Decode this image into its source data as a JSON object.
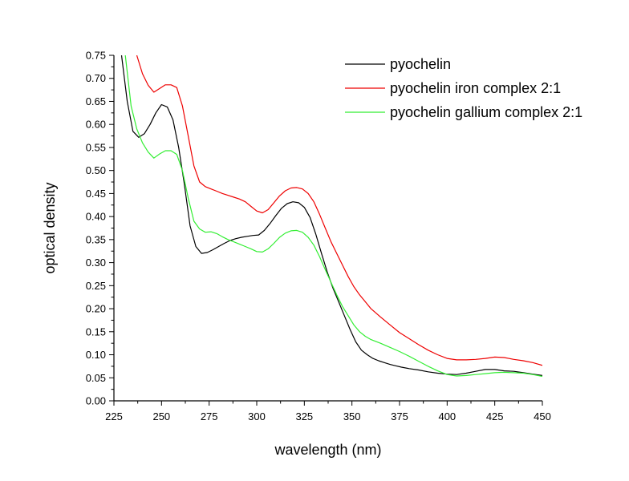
{
  "chart_data": {
    "type": "line",
    "title": "",
    "xlabel": "wavelength (nm)",
    "ylabel": "optical density",
    "xlim": [
      225,
      450
    ],
    "ylim": [
      0.0,
      0.75
    ],
    "x_ticks": [
      "225",
      "250",
      "275",
      "300",
      "325",
      "350",
      "375",
      "400",
      "425",
      "450"
    ],
    "y_ticks": [
      "0.00",
      "0.05",
      "0.10",
      "0.15",
      "0.20",
      "0.25",
      "0.30",
      "0.35",
      "0.40",
      "0.45",
      "0.50",
      "0.55",
      "0.60",
      "0.65",
      "0.70",
      "0.75"
    ],
    "grid": false,
    "legend_position": "top-right",
    "series": [
      {
        "name": "pyochelin",
        "color": "#000000",
        "x": [
          229,
          232,
          235,
          238,
          241,
          244,
          247,
          250,
          253,
          256,
          259,
          262,
          265,
          268,
          271,
          274,
          277,
          280,
          283,
          286,
          289,
          292,
          295,
          298,
          301,
          304,
          307,
          310,
          313,
          316,
          319,
          322,
          325,
          328,
          331,
          334,
          337,
          340,
          343,
          346,
          349,
          352,
          355,
          358,
          361,
          364,
          367,
          370,
          373,
          376,
          380,
          385,
          390,
          395,
          400,
          405,
          410,
          415,
          420,
          425,
          430,
          435,
          440,
          445,
          450
        ],
        "y": [
          0.75,
          0.65,
          0.585,
          0.572,
          0.58,
          0.6,
          0.625,
          0.643,
          0.638,
          0.61,
          0.55,
          0.47,
          0.38,
          0.335,
          0.32,
          0.322,
          0.328,
          0.335,
          0.342,
          0.348,
          0.352,
          0.355,
          0.357,
          0.359,
          0.36,
          0.37,
          0.385,
          0.402,
          0.418,
          0.428,
          0.432,
          0.43,
          0.42,
          0.398,
          0.362,
          0.32,
          0.28,
          0.245,
          0.215,
          0.185,
          0.155,
          0.128,
          0.11,
          0.1,
          0.092,
          0.087,
          0.083,
          0.079,
          0.076,
          0.073,
          0.07,
          0.067,
          0.063,
          0.06,
          0.058,
          0.057,
          0.06,
          0.064,
          0.068,
          0.068,
          0.065,
          0.064,
          0.061,
          0.058,
          0.055
        ]
      },
      {
        "name": "pyochelin iron complex 2:1",
        "color": "#ee0000",
        "x": [
          237,
          240,
          243,
          246,
          249,
          252,
          255,
          258,
          261,
          264,
          267,
          270,
          273,
          276,
          279,
          282,
          285,
          288,
          291,
          294,
          297,
          300,
          303,
          306,
          309,
          312,
          315,
          318,
          321,
          324,
          327,
          330,
          333,
          336,
          339,
          342,
          345,
          348,
          351,
          354,
          357,
          360,
          365,
          370,
          375,
          380,
          385,
          390,
          395,
          400,
          405,
          410,
          415,
          420,
          425,
          430,
          435,
          440,
          445,
          450
        ],
        "y": [
          0.75,
          0.71,
          0.685,
          0.67,
          0.678,
          0.686,
          0.686,
          0.68,
          0.64,
          0.575,
          0.51,
          0.475,
          0.465,
          0.46,
          0.455,
          0.45,
          0.446,
          0.442,
          0.438,
          0.432,
          0.422,
          0.412,
          0.408,
          0.415,
          0.43,
          0.445,
          0.456,
          0.462,
          0.463,
          0.46,
          0.45,
          0.432,
          0.405,
          0.375,
          0.345,
          0.32,
          0.295,
          0.27,
          0.248,
          0.23,
          0.215,
          0.2,
          0.182,
          0.165,
          0.148,
          0.135,
          0.122,
          0.11,
          0.1,
          0.092,
          0.089,
          0.089,
          0.09,
          0.092,
          0.095,
          0.094,
          0.09,
          0.087,
          0.083,
          0.077
        ]
      },
      {
        "name": "pyochelin gallium complex 2:1",
        "color": "#33ee33",
        "x": [
          231,
          234,
          237,
          240,
          243,
          246,
          249,
          252,
          255,
          258,
          261,
          264,
          267,
          270,
          273,
          276,
          279,
          282,
          285,
          288,
          291,
          294,
          297,
          300,
          303,
          306,
          309,
          312,
          315,
          318,
          321,
          324,
          327,
          330,
          333,
          336,
          339,
          342,
          345,
          348,
          351,
          354,
          357,
          360,
          365,
          370,
          375,
          380,
          385,
          390,
          395,
          400,
          405,
          410,
          415,
          420,
          425,
          430,
          435,
          440,
          445,
          450
        ],
        "y": [
          0.75,
          0.64,
          0.59,
          0.56,
          0.54,
          0.527,
          0.536,
          0.543,
          0.543,
          0.535,
          0.5,
          0.44,
          0.39,
          0.373,
          0.366,
          0.367,
          0.363,
          0.356,
          0.35,
          0.345,
          0.34,
          0.335,
          0.33,
          0.324,
          0.323,
          0.33,
          0.342,
          0.355,
          0.364,
          0.369,
          0.37,
          0.366,
          0.355,
          0.338,
          0.313,
          0.285,
          0.257,
          0.23,
          0.205,
          0.185,
          0.165,
          0.15,
          0.14,
          0.133,
          0.125,
          0.116,
          0.107,
          0.097,
          0.086,
          0.075,
          0.065,
          0.057,
          0.054,
          0.055,
          0.057,
          0.059,
          0.061,
          0.062,
          0.061,
          0.06,
          0.057,
          0.053
        ]
      }
    ]
  }
}
